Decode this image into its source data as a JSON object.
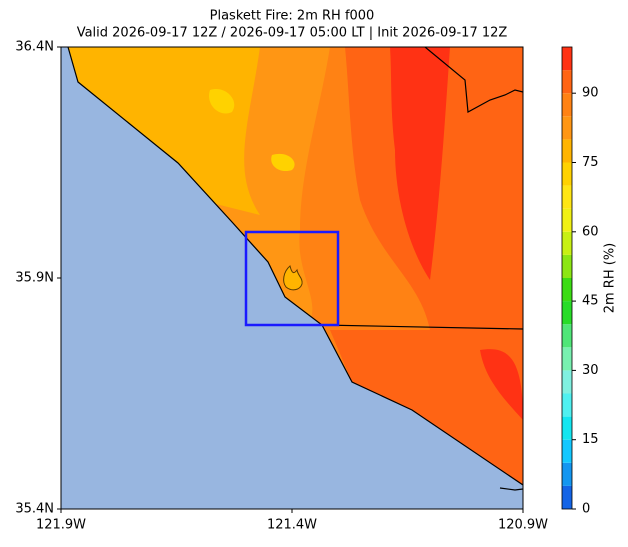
{
  "map": {
    "title": "Plaskett Fire: 2m RH f000",
    "subtitle": "Valid 2026-09-17 12Z / 2026-09-17 05:00 LT | Init 2026-09-17 12Z",
    "xlim": [
      -121.9,
      -120.9
    ],
    "ylim": [
      35.4,
      36.4
    ],
    "xticks": [
      {
        "value": -121.9,
        "label": "121.9W"
      },
      {
        "value": -121.4,
        "label": "121.4W"
      },
      {
        "value": -120.9,
        "label": "120.9W"
      }
    ],
    "yticks": [
      {
        "value": 35.4,
        "label": "35.4N"
      },
      {
        "value": 35.9,
        "label": "35.9N"
      },
      {
        "value": 36.4,
        "label": "36.4N"
      }
    ],
    "colorbar": {
      "label": "2m RH (%)",
      "levels": [
        0,
        5,
        10,
        15,
        20,
        25,
        30,
        35,
        40,
        45,
        50,
        55,
        60,
        65,
        70,
        75,
        80,
        85,
        90,
        95,
        100
      ],
      "colors": [
        "#1464e6",
        "#1496f0",
        "#14c8ff",
        "#14e6f0",
        "#50f0f0",
        "#80f0e0",
        "#78f0b0",
        "#50e678",
        "#28dc28",
        "#3cdc14",
        "#8ce614",
        "#c8f014",
        "#f0f014",
        "#ffe614",
        "#ffd200",
        "#ffb400",
        "#ff9614",
        "#ff8214",
        "#ff6414",
        "#ff3214"
      ],
      "ticks": [
        0,
        15,
        30,
        45,
        60,
        75,
        90
      ]
    }
  }
}
